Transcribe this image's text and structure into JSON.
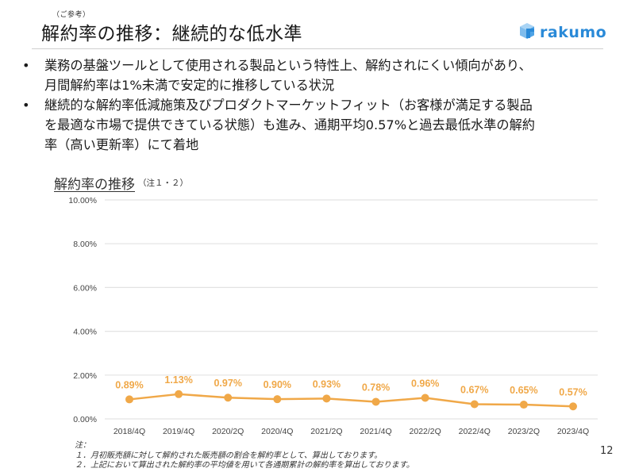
{
  "header": {
    "subtitle_note": "（ご参考）",
    "title": "解約率の推移：継続的な低水準",
    "logo": {
      "icon": "rakumo-cube-icon",
      "text": "rakumo",
      "color": "#2a8ad8"
    }
  },
  "bullets": [
    {
      "text": "業務の基盤ツールとして使用される製品という特性上、解約されにくい傾向があり、\n月間解約率は1%未満で安定的に推移している状況"
    },
    {
      "text": "継続的な解約率低減施策及びプロダクトマーケットフィット（お客様が満足する製品\nを最適な市場で提供できている状態）も進み、通期平均0.57%と過去最低水準の解約\n率（高い更新率）にて着地"
    }
  ],
  "chart_section": {
    "title": "解約率の推移",
    "title_note": "（注１・２）"
  },
  "chart_data": {
    "type": "line",
    "title": "解約率の推移",
    "xlabel": "",
    "ylabel": "",
    "categories": [
      "2018/4Q",
      "2019/4Q",
      "2020/2Q",
      "2020/4Q",
      "2021/2Q",
      "2021/4Q",
      "2022/2Q",
      "2022/4Q",
      "2023/2Q",
      "2023/4Q"
    ],
    "series": [
      {
        "name": "解約率",
        "values": [
          0.89,
          1.13,
          0.97,
          0.9,
          0.93,
          0.78,
          0.96,
          0.67,
          0.65,
          0.57
        ],
        "labels": [
          "0.89%",
          "1.13%",
          "0.97%",
          "0.90%",
          "0.93%",
          "0.78%",
          "0.96%",
          "0.67%",
          "0.65%",
          "0.57%"
        ],
        "color": "#f0a848"
      }
    ],
    "ylim": [
      0,
      10
    ],
    "yticks": [
      0,
      2,
      4,
      6,
      8,
      10
    ],
    "ytick_labels": [
      "0.00%",
      "2.00%",
      "4.00%",
      "6.00%",
      "8.00%",
      "10.00%"
    ],
    "grid": true,
    "legend": "none",
    "data_labels": true
  },
  "footnotes": {
    "heading": "注：",
    "items": [
      "１．月初販売額に対して解約された販売額の割合を解約率として、算出しております。",
      "２．上記において算出された解約率の平均値を用いて各通期累計の解約率を算出しております。"
    ]
  },
  "page_number": "12"
}
